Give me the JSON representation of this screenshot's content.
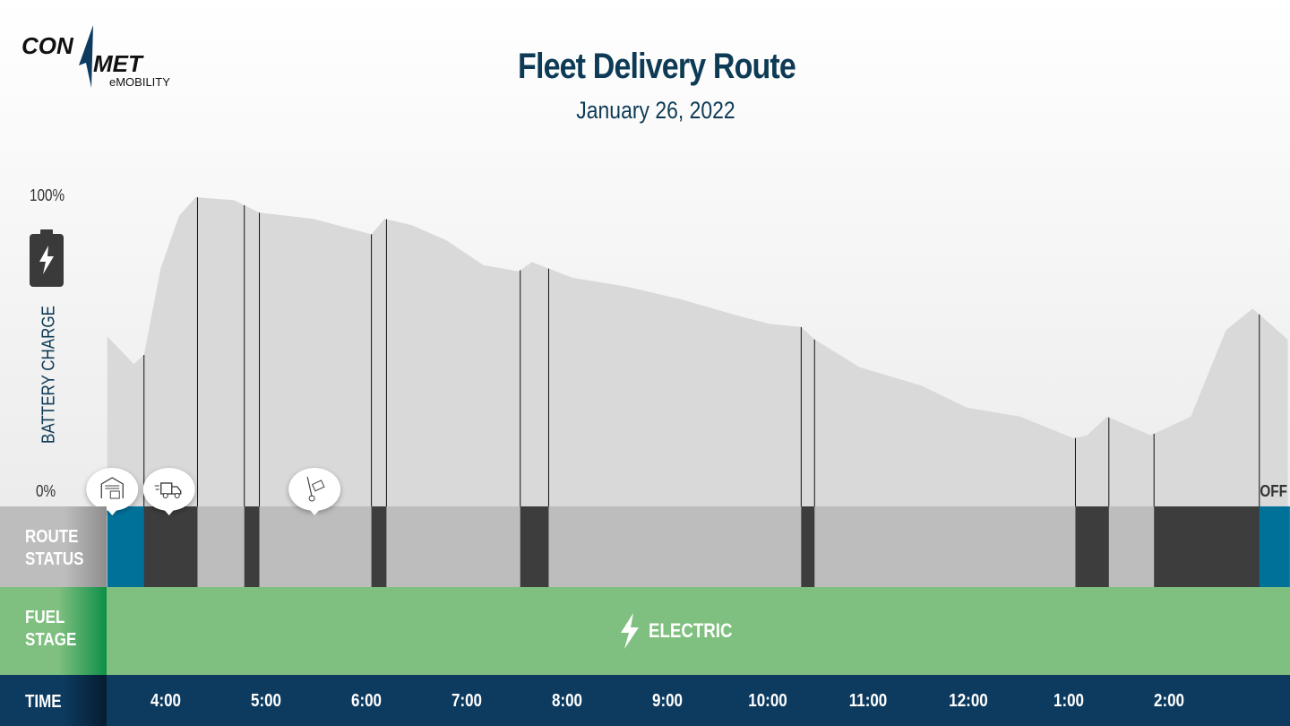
{
  "logo": {
    "text_top": "CON",
    "text_mid": "MET",
    "text_sub": "eMOBILITY"
  },
  "header": {
    "title": "Fleet Delivery Route",
    "subtitle": "January 26, 2022"
  },
  "colors": {
    "area": "#d9d9d9",
    "depot": "#00729a",
    "driving": "#3d3d3d",
    "stopped": "#bdbdbd",
    "fuel_electric": "#7fbf7f",
    "time_bar": "#0d3a5f",
    "title": "#0d3a55"
  },
  "rows": {
    "route_status": [
      "ROUTE",
      "STATUS"
    ],
    "fuel_stage": [
      "FUEL",
      "STAGE"
    ],
    "time": "TIME"
  },
  "fuel": {
    "label": "ELECTRIC",
    "icon": "lightning-bolt-icon"
  },
  "end_label": "OFF",
  "chart_data": {
    "type": "area",
    "ylabel": "BATTERY CHARGE",
    "ylim": [
      0,
      100
    ],
    "ytick_labels": [
      "100%",
      "0%"
    ],
    "xtick_labels": [
      "4:00",
      "5:00",
      "6:00",
      "7:00",
      "8:00",
      "9:00",
      "10:00",
      "11:00",
      "12:00",
      "1:00",
      "2:00"
    ],
    "xticks": [
      "04:00",
      "05:00",
      "06:00",
      "07:00",
      "08:00",
      "09:00",
      "10:00",
      "11:00",
      "12:00",
      "13:00",
      "14:00"
    ],
    "battery_series": [
      [
        "03:25",
        55
      ],
      [
        "03:41",
        46
      ],
      [
        "03:47",
        49
      ],
      [
        "03:57",
        77
      ],
      [
        "04:08",
        94
      ],
      [
        "04:18",
        100
      ],
      [
        "04:41",
        99
      ],
      [
        "04:56",
        95
      ],
      [
        "05:28",
        93
      ],
      [
        "06:03",
        88
      ],
      [
        "06:11",
        93
      ],
      [
        "06:27",
        91
      ],
      [
        "06:48",
        86
      ],
      [
        "07:10",
        78
      ],
      [
        "07:31",
        76
      ],
      [
        "07:39",
        79
      ],
      [
        "08:03",
        74
      ],
      [
        "08:36",
        71
      ],
      [
        "09:08",
        67
      ],
      [
        "09:40",
        62
      ],
      [
        "10:01",
        59
      ],
      [
        "10:20",
        58
      ],
      [
        "10:28",
        54
      ],
      [
        "10:55",
        45
      ],
      [
        "11:32",
        39
      ],
      [
        "11:59",
        32
      ],
      [
        "12:31",
        29
      ],
      [
        "13:03",
        22
      ],
      [
        "13:11",
        23
      ],
      [
        "13:23",
        29
      ],
      [
        "13:49",
        23
      ],
      [
        "14:13",
        29
      ],
      [
        "14:34",
        57
      ],
      [
        "14:50",
        64
      ],
      [
        "15:11",
        54
      ]
    ],
    "route_status": [
      {
        "start": "03:25",
        "end": "03:47",
        "status": "depot"
      },
      {
        "start": "03:47",
        "end": "04:19",
        "status": "driving"
      },
      {
        "start": "04:19",
        "end": "04:47",
        "status": "stopped"
      },
      {
        "start": "04:47",
        "end": "04:56",
        "status": "driving"
      },
      {
        "start": "04:56",
        "end": "06:03",
        "status": "stopped"
      },
      {
        "start": "06:03",
        "end": "06:12",
        "status": "driving"
      },
      {
        "start": "06:12",
        "end": "07:32",
        "status": "stopped"
      },
      {
        "start": "07:32",
        "end": "07:49",
        "status": "driving"
      },
      {
        "start": "07:49",
        "end": "10:20",
        "status": "stopped"
      },
      {
        "start": "10:20",
        "end": "10:28",
        "status": "driving"
      },
      {
        "start": "10:28",
        "end": "13:04",
        "status": "stopped"
      },
      {
        "start": "13:04",
        "end": "13:24",
        "status": "driving"
      },
      {
        "start": "13:24",
        "end": "13:51",
        "status": "stopped"
      },
      {
        "start": "13:51",
        "end": "14:54",
        "status": "driving"
      },
      {
        "start": "14:54",
        "end": "15:12",
        "status": "depot"
      }
    ],
    "markers": [
      {
        "time": "03:28",
        "icon": "warehouse-icon"
      },
      {
        "time": "04:02",
        "icon": "delivery-truck-icon"
      },
      {
        "time": "05:29",
        "icon": "hand-truck-icon"
      }
    ]
  }
}
